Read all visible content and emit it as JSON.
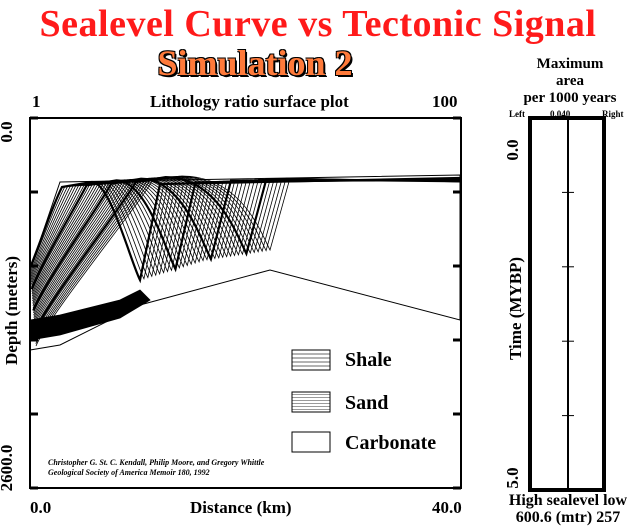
{
  "title": "Sealevel Curve vs Tectonic Signal",
  "subtitle": "Simulation 2",
  "main_plot": {
    "top_left_label": "1",
    "top_center_label": "Lithology ratio surface plot",
    "top_right_label": "100",
    "y_axis_label": "Depth (meters)",
    "y_tick_top": "0.0",
    "y_tick_bottom": "2600.0",
    "x_axis_label": "Distance (km)",
    "x_tick_left": "0.0",
    "x_tick_right": "40.0",
    "legend": [
      {
        "label": "Shale",
        "pattern": "shale"
      },
      {
        "label": "Sand",
        "pattern": "sand"
      },
      {
        "label": "Carbonate",
        "pattern": "carbonate"
      }
    ],
    "credit_line1": "Christopher G. St. C. Kendall, Philip Moore, and Gregory Whittle",
    "credit_line2": "Geological Society of America Memoir 180, 1992"
  },
  "side_plot": {
    "header_line1": "Maximum",
    "header_line2": "area",
    "header_line3": "per 1000 years",
    "left_label": "Left",
    "center_label": "0.040",
    "right_label": "Right",
    "y_axis_label": "Time (MYBP)",
    "y_tick_top": "0.0",
    "y_tick_bottom": "5.0",
    "bottom_line1": "High sealevel low",
    "bottom_line2": "600.6 (mtr) 257"
  },
  "colors": {
    "title": "#ff1a1a",
    "subtitle": "#ff7a3a"
  }
}
